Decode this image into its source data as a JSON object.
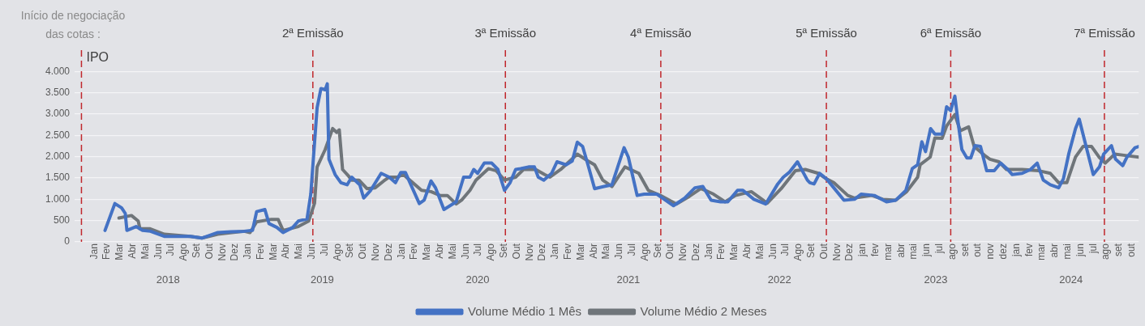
{
  "chart_data": {
    "type": "line",
    "annotations": [
      "Início de negociação\ndas cotas :"
    ],
    "xlim": [
      "2017-11-15",
      "2024-10-18"
    ],
    "xticks": [
      {
        "value": "2018-01-01",
        "label": "Jan"
      },
      {
        "value": "2018-02-01",
        "label": "Fev"
      },
      {
        "value": "2018-03-01",
        "label": "Mar"
      },
      {
        "value": "2018-04-01",
        "label": "Abr"
      },
      {
        "value": "2018-05-01",
        "label": "Mai"
      },
      {
        "value": "2018-06-01",
        "label": "Jun"
      },
      {
        "value": "2018-07-01",
        "label": "Jul"
      },
      {
        "value": "2018-08-01",
        "label": "Ago"
      },
      {
        "value": "2018-09-01",
        "label": "Set"
      },
      {
        "value": "2018-10-01",
        "label": "Out"
      },
      {
        "value": "2018-11-01",
        "label": "Nov"
      },
      {
        "value": "2018-12-01",
        "label": "Dez"
      },
      {
        "value": "2019-01-01",
        "label": "Jan"
      },
      {
        "value": "2019-02-01",
        "label": "Fev"
      },
      {
        "value": "2019-03-01",
        "label": "Mar"
      },
      {
        "value": "2019-04-01",
        "label": "Abr"
      },
      {
        "value": "2019-05-01",
        "label": "Mai"
      },
      {
        "value": "2019-06-01",
        "label": "Jun"
      },
      {
        "value": "2019-07-01",
        "label": "Jul"
      },
      {
        "value": "2019-08-01",
        "label": "Ago"
      },
      {
        "value": "2019-09-01",
        "label": "Set"
      },
      {
        "value": "2019-10-01",
        "label": "Out"
      },
      {
        "value": "2019-11-01",
        "label": "Nov"
      },
      {
        "value": "2019-12-01",
        "label": "Dez"
      },
      {
        "value": "2020-01-01",
        "label": "Jan"
      },
      {
        "value": "2020-02-01",
        "label": "Fev"
      },
      {
        "value": "2020-03-01",
        "label": "Mar"
      },
      {
        "value": "2020-04-01",
        "label": "Abr"
      },
      {
        "value": "2020-05-01",
        "label": "Mai"
      },
      {
        "value": "2020-06-01",
        "label": "Jun"
      },
      {
        "value": "2020-07-01",
        "label": "Jul"
      },
      {
        "value": "2020-08-01",
        "label": "Ago"
      },
      {
        "value": "2020-09-01",
        "label": "Set"
      },
      {
        "value": "2020-10-01",
        "label": "Out"
      },
      {
        "value": "2020-11-01",
        "label": "Nov"
      },
      {
        "value": "2020-12-01",
        "label": "Dez"
      },
      {
        "value": "2021-01-01",
        "label": "Jan"
      },
      {
        "value": "2021-02-01",
        "label": "Fev"
      },
      {
        "value": "2021-03-01",
        "label": "Mar"
      },
      {
        "value": "2021-04-01",
        "label": "Abr"
      },
      {
        "value": "2021-05-01",
        "label": "Mai"
      },
      {
        "value": "2021-06-01",
        "label": "Jun"
      },
      {
        "value": "2021-07-01",
        "label": "Jul"
      },
      {
        "value": "2021-08-01",
        "label": "Ago"
      },
      {
        "value": "2021-09-01",
        "label": "Set"
      },
      {
        "value": "2021-10-01",
        "label": "Out"
      },
      {
        "value": "2021-11-01",
        "label": "Nov"
      },
      {
        "value": "2021-12-01",
        "label": "Dez"
      },
      {
        "value": "2022-01-01",
        "label": "Jan"
      },
      {
        "value": "2022-02-01",
        "label": "Fev"
      },
      {
        "value": "2022-03-01",
        "label": "Mar"
      },
      {
        "value": "2022-04-01",
        "label": "Abr"
      },
      {
        "value": "2022-05-01",
        "label": "Mai"
      },
      {
        "value": "2022-06-01",
        "label": "Jun"
      },
      {
        "value": "2022-07-01",
        "label": "Jul"
      },
      {
        "value": "2022-08-01",
        "label": "Ago"
      },
      {
        "value": "2022-09-01",
        "label": "Set"
      },
      {
        "value": "2022-10-01",
        "label": "Out"
      },
      {
        "value": "2022-11-01",
        "label": "Nov"
      },
      {
        "value": "2022-12-01",
        "label": "Dez"
      },
      {
        "value": "2023-01-01",
        "label": "jan"
      },
      {
        "value": "2023-02-01",
        "label": "fev"
      },
      {
        "value": "2023-03-01",
        "label": "mar"
      },
      {
        "value": "2023-04-01",
        "label": "abr"
      },
      {
        "value": "2023-05-01",
        "label": "mai"
      },
      {
        "value": "2023-06-01",
        "label": "jun"
      },
      {
        "value": "2023-07-01",
        "label": "jul"
      },
      {
        "value": "2023-08-01",
        "label": "ago"
      },
      {
        "value": "2023-09-01",
        "label": "set"
      },
      {
        "value": "2023-10-01",
        "label": "out"
      },
      {
        "value": "2023-11-01",
        "label": "nov"
      },
      {
        "value": "2023-12-01",
        "label": "dez"
      },
      {
        "value": "2024-01-01",
        "label": "jan"
      },
      {
        "value": "2024-02-01",
        "label": "fev"
      },
      {
        "value": "2024-03-01",
        "label": "mar"
      },
      {
        "value": "2024-04-01",
        "label": "abr"
      },
      {
        "value": "2024-05-01",
        "label": "mai"
      },
      {
        "value": "2024-06-01",
        "label": "jun"
      },
      {
        "value": "2024-07-01",
        "label": "jul"
      },
      {
        "value": "2024-08-01",
        "label": "ago"
      },
      {
        "value": "2024-09-01",
        "label": "set"
      },
      {
        "value": "2024-10-01",
        "label": "out"
      }
    ],
    "x2lim": [
      "2017-11-15",
      "2024-10-18"
    ],
    "x2ticks": [
      {
        "value": "2018-06-24",
        "label": "2018"
      },
      {
        "value": "2019-06-25",
        "label": "2019"
      },
      {
        "value": "2020-06-29",
        "label": "2020"
      },
      {
        "value": "2021-06-22",
        "label": "2021"
      },
      {
        "value": "2022-06-16",
        "label": "2022"
      },
      {
        "value": "2023-06-22",
        "label": "2023"
      },
      {
        "value": "2024-05-09",
        "label": "2024"
      }
    ],
    "ylim": [
      0,
      4500
    ],
    "yticks": [
      0,
      500,
      {
        "value": 1000,
        "label": "1.000"
      },
      {
        "value": 1500,
        "label": "1.500"
      },
      {
        "value": 2000,
        "label": "2.000"
      },
      {
        "value": 2500,
        "label": "2.500"
      },
      {
        "value": 3000,
        "label": "3.000"
      },
      {
        "value": 3500,
        "label": "3.500"
      },
      {
        "value": 4000,
        "label": "4.000"
      }
    ],
    "grid": "y",
    "legend": "bottom",
    "marker": "none",
    "line_style": "solid",
    "ref_lines": [
      {
        "axis": "x",
        "value": "2017-12-01",
        "label": "IPO",
        "color": "#c0282d",
        "line_style": "dashed"
      },
      {
        "axis": "x",
        "value": "2019-06-03",
        "label": "2ª Emissão",
        "color": "#c0282d",
        "line_style": "dashed"
      },
      {
        "axis": "x",
        "value": "2020-09-04",
        "label": "3ª Emissão",
        "color": "#c0282d",
        "line_style": "dashed"
      },
      {
        "axis": "x",
        "value": "2021-09-08",
        "label": "4ª Emissão",
        "color": "#c0282d",
        "line_style": "dashed"
      },
      {
        "axis": "x",
        "value": "2022-10-06",
        "label": "5ª Emissão",
        "color": "#c0282d",
        "line_style": "dashed"
      },
      {
        "axis": "x",
        "value": "2023-07-28",
        "label": "6ª Emissão",
        "color": "#c0282d",
        "line_style": "dashed"
      },
      {
        "axis": "x",
        "value": "2024-07-28",
        "label": "7ª Emissão",
        "color": "#c0282d",
        "line_style": "dashed"
      }
    ],
    "series": [
      {
        "name": "Volume Médio 1 Mês",
        "color": "#4472c4",
        "x": [
          "2018-01-27",
          "2018-02-18",
          "2018-03-05",
          "2018-03-14",
          "2018-03-18",
          "2018-04-09",
          "2018-04-24",
          "2018-05-13",
          "2018-06-15",
          "2018-07-17",
          "2018-08-17",
          "2018-09-13",
          "2018-10-21",
          "2018-11-21",
          "2018-12-23",
          "2019-01-12",
          "2019-01-22",
          "2019-02-10",
          "2019-02-19",
          "2019-03-09",
          "2019-03-24",
          "2019-04-16",
          "2019-04-29",
          "2019-05-20",
          "2019-05-29",
          "2019-06-13",
          "2019-06-22",
          "2019-07-02",
          "2019-07-07",
          "2019-07-11",
          "2019-07-26",
          "2019-08-09",
          "2019-08-24",
          "2019-09-04",
          "2019-09-23",
          "2019-10-02",
          "2019-10-19",
          "2019-11-13",
          "2019-12-02",
          "2019-12-17",
          "2019-12-30",
          "2020-01-10",
          "2020-02-12",
          "2020-02-23",
          "2020-03-10",
          "2020-03-21",
          "2020-04-10",
          "2020-05-09",
          "2020-05-27",
          "2020-06-11",
          "2020-06-20",
          "2020-06-29",
          "2020-07-15",
          "2020-08-02",
          "2020-08-17",
          "2020-09-02",
          "2020-09-15",
          "2020-09-28",
          "2020-10-10",
          "2020-10-29",
          "2020-11-12",
          "2020-11-21",
          "2020-12-04",
          "2020-12-23",
          "2021-01-05",
          "2021-01-27",
          "2021-02-10",
          "2021-02-21",
          "2021-03-05",
          "2021-03-18",
          "2021-04-03",
          "2021-04-25",
          "2021-05-14",
          "2021-05-29",
          "2021-06-12",
          "2021-06-22",
          "2021-07-13",
          "2021-07-30",
          "2021-08-30",
          "2021-10-08",
          "2021-11-04",
          "2021-11-28",
          "2021-12-17",
          "2022-01-06",
          "2022-01-29",
          "2022-02-14",
          "2022-03-08",
          "2022-03-21",
          "2022-04-16",
          "2022-05-14",
          "2022-06-12",
          "2022-06-25",
          "2022-07-09",
          "2022-07-29",
          "2022-08-22",
          "2022-08-28",
          "2022-09-07",
          "2022-09-20",
          "2022-10-06",
          "2022-10-24",
          "2022-11-17",
          "2022-12-12",
          "2022-12-28",
          "2023-01-29",
          "2023-02-25",
          "2023-03-19",
          "2023-04-12",
          "2023-04-27",
          "2023-05-10",
          "2023-05-20",
          "2023-05-29",
          "2023-06-10",
          "2023-06-20",
          "2023-07-07",
          "2023-07-18",
          "2023-07-28",
          "2023-08-07",
          "2023-08-16",
          "2023-08-24",
          "2023-09-05",
          "2023-09-14",
          "2023-09-24",
          "2023-10-07",
          "2023-10-22",
          "2023-11-09",
          "2023-11-24",
          "2023-12-09",
          "2023-12-22",
          "2024-01-15",
          "2024-02-04",
          "2024-02-19",
          "2024-03-04",
          "2024-03-21",
          "2024-04-10",
          "2024-04-21",
          "2024-05-04",
          "2024-05-20",
          "2024-05-29",
          "2024-06-16",
          "2024-07-01",
          "2024-07-16",
          "2024-07-26",
          "2024-08-14",
          "2024-08-24",
          "2024-09-10",
          "2024-09-20",
          "2024-10-09",
          "2024-10-18"
        ],
        "values": [
          270,
          900,
          800,
          670,
          270,
          360,
          270,
          250,
          130,
          130,
          130,
          90,
          220,
          240,
          250,
          270,
          710,
          760,
          430,
          340,
          220,
          340,
          490,
          540,
          1120,
          3150,
          3600,
          3570,
          3710,
          1940,
          1580,
          1390,
          1340,
          1520,
          1340,
          1030,
          1210,
          1610,
          1520,
          1390,
          1630,
          1630,
          900,
          980,
          1430,
          1270,
          760,
          940,
          1520,
          1520,
          1700,
          1610,
          1850,
          1850,
          1700,
          1210,
          1390,
          1700,
          1720,
          1760,
          1760,
          1520,
          1450,
          1610,
          1880,
          1810,
          1900,
          2340,
          2240,
          1810,
          1250,
          1300,
          1340,
          1790,
          2210,
          1990,
          1090,
          1120,
          1120,
          850,
          1030,
          1270,
          1300,
          980,
          940,
          940,
          1210,
          1210,
          1000,
          890,
          1360,
          1520,
          1630,
          1880,
          1450,
          1390,
          1360,
          1610,
          1480,
          1270,
          980,
          1000,
          1120,
          1090,
          940,
          980,
          1210,
          1720,
          1810,
          2350,
          2120,
          2660,
          2530,
          2530,
          3170,
          3080,
          3420,
          2720,
          2170,
          1970,
          1970,
          2260,
          2240,
          1670,
          1670,
          1850,
          1720,
          1580,
          1610,
          1700,
          1850,
          1450,
          1340,
          1270,
          1480,
          2080,
          2660,
          2880,
          2170,
          1580,
          1760,
          2060,
          2260,
          1940,
          1790,
          1990,
          2210,
          2240
        ]
      },
      {
        "name": "Volume Médio 2 Meses",
        "color": "#6f757a",
        "x": [
          "2018-02-27",
          "2018-03-29",
          "2018-04-14",
          "2018-04-18",
          "2018-05-11",
          "2018-06-15",
          "2018-08-17",
          "2018-09-13",
          "2018-10-21",
          "2018-12-23",
          "2019-01-06",
          "2019-01-22",
          "2019-02-24",
          "2019-03-12",
          "2019-03-24",
          "2019-04-29",
          "2019-05-24",
          "2019-06-07",
          "2019-06-13",
          "2019-07-02",
          "2019-07-20",
          "2019-07-30",
          "2019-08-05",
          "2019-08-13",
          "2019-08-28",
          "2019-09-04",
          "2019-09-21",
          "2019-10-10",
          "2019-10-30",
          "2019-11-19",
          "2019-12-02",
          "2019-12-21",
          "2020-01-05",
          "2020-01-10",
          "2020-02-17",
          "2020-03-10",
          "2020-04-01",
          "2020-04-18",
          "2020-05-09",
          "2020-05-22",
          "2020-06-11",
          "2020-06-25",
          "2020-07-25",
          "2020-08-13",
          "2020-09-02",
          "2020-09-28",
          "2020-10-17",
          "2020-11-15",
          "2020-12-06",
          "2020-12-19",
          "2021-01-14",
          "2021-02-21",
          "2021-03-18",
          "2021-04-03",
          "2021-04-22",
          "2021-05-14",
          "2021-06-14",
          "2021-07-17",
          "2021-08-09",
          "2021-09-07",
          "2021-10-15",
          "2021-11-15",
          "2021-12-12",
          "2021-12-23",
          "2022-01-12",
          "2022-02-08",
          "2022-03-03",
          "2022-04-10",
          "2022-05-18",
          "2022-06-20",
          "2022-07-24",
          "2022-08-17",
          "2022-09-17",
          "2022-10-06",
          "2022-10-24",
          "2022-11-26",
          "2022-12-12",
          "2023-01-23",
          "2023-02-17",
          "2023-03-19",
          "2023-04-14",
          "2023-05-10",
          "2023-05-16",
          "2023-06-09",
          "2023-06-20",
          "2023-07-07",
          "2023-07-18",
          "2023-08-07",
          "2023-08-20",
          "2023-09-09",
          "2023-09-22",
          "2023-10-17",
          "2023-10-30",
          "2023-11-20",
          "2023-12-08",
          "2024-01-15",
          "2024-02-23",
          "2024-03-21",
          "2024-04-10",
          "2024-04-29",
          "2024-05-20",
          "2024-06-07",
          "2024-06-27",
          "2024-07-15",
          "2024-07-30",
          "2024-08-22",
          "2024-09-16",
          "2024-10-18"
        ],
        "values": [
          560,
          620,
          490,
          310,
          310,
          180,
          130,
          90,
          180,
          250,
          220,
          470,
          530,
          530,
          270,
          360,
          490,
          910,
          1760,
          2170,
          2660,
          2570,
          2630,
          1700,
          1540,
          1450,
          1450,
          1250,
          1270,
          1430,
          1520,
          1520,
          1580,
          1540,
          1210,
          1180,
          1090,
          1090,
          890,
          980,
          1210,
          1450,
          1720,
          1670,
          1450,
          1520,
          1700,
          1700,
          1580,
          1520,
          1700,
          2060,
          1900,
          1810,
          1450,
          1300,
          1760,
          1610,
          1210,
          1090,
          890,
          1070,
          1250,
          1210,
          1120,
          940,
          1090,
          1180,
          910,
          1250,
          1670,
          1700,
          1610,
          1480,
          1390,
          1090,
          1030,
          1090,
          1000,
          980,
          1180,
          1520,
          1810,
          1990,
          2440,
          2430,
          2720,
          2990,
          2610,
          2700,
          2240,
          2030,
          1940,
          1880,
          1700,
          1700,
          1670,
          1610,
          1390,
          1390,
          1990,
          2240,
          2240,
          1990,
          1850,
          2060,
          2030,
          1990
        ]
      }
    ]
  }
}
